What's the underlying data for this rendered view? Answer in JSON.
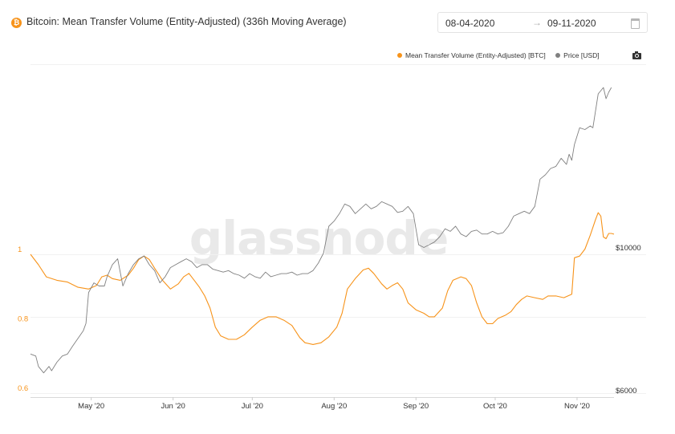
{
  "header": {
    "icon": "bitcoin-icon",
    "title": "Bitcoin: Mean Transfer Volume (Entity-Adjusted) (336h Moving Average)",
    "date_start": "08-04-2020",
    "date_arrow": "→",
    "date_end": "09-11-2020",
    "calendar_icon": "calendar-icon"
  },
  "legend": {
    "items": [
      {
        "label": "Mean Transfer Volume (Entity-Adjusted) [BTC]",
        "color": "#f7931a"
      },
      {
        "label": "Price [USD]",
        "color": "#808080"
      }
    ],
    "camera_icon": "camera-icon"
  },
  "watermark": "glassnode",
  "chart_data": {
    "type": "line",
    "x_ticks": [
      "May '20",
      "Jun '20",
      "Jul '20",
      "Aug '20",
      "Sep '20",
      "Oct '20",
      "Nov '20"
    ],
    "x_tick_days": [
      23,
      54,
      84,
      115,
      146,
      176,
      207
    ],
    "y_left": {
      "ticks": [
        1,
        0.8,
        0.6
      ],
      "range": [
        0.6,
        1.0
      ]
    },
    "y_right": {
      "ticks": [
        10000,
        6000
      ],
      "tick_labels": [
        "$10000",
        "$6000"
      ],
      "scale": "log"
    },
    "series": [
      {
        "name": "Mean Transfer Volume (Entity-Adjusted) [BTC]",
        "axis": "left",
        "color": "#f7931a",
        "points": [
          [
            0,
            1.0
          ],
          [
            3,
            0.97
          ],
          [
            6,
            0.935
          ],
          [
            10,
            0.925
          ],
          [
            14,
            0.92
          ],
          [
            18,
            0.905
          ],
          [
            22,
            0.9
          ],
          [
            25,
            0.91
          ],
          [
            27,
            0.935
          ],
          [
            29,
            0.94
          ],
          [
            31,
            0.93
          ],
          [
            34,
            0.925
          ],
          [
            37,
            0.94
          ],
          [
            39,
            0.96
          ],
          [
            41,
            0.985
          ],
          [
            43,
            0.995
          ],
          [
            45,
            0.985
          ],
          [
            47,
            0.96
          ],
          [
            50,
            0.925
          ],
          [
            53,
            0.9
          ],
          [
            56,
            0.915
          ],
          [
            58,
            0.935
          ],
          [
            60,
            0.945
          ],
          [
            62,
            0.925
          ],
          [
            64,
            0.905
          ],
          [
            66,
            0.88
          ],
          [
            68,
            0.845
          ],
          [
            70,
            0.79
          ],
          [
            72,
            0.765
          ],
          [
            75,
            0.755
          ],
          [
            78,
            0.755
          ],
          [
            81,
            0.768
          ],
          [
            84,
            0.79
          ],
          [
            87,
            0.81
          ],
          [
            90,
            0.82
          ],
          [
            93,
            0.82
          ],
          [
            96,
            0.81
          ],
          [
            99,
            0.795
          ],
          [
            102,
            0.76
          ],
          [
            104,
            0.745
          ],
          [
            107,
            0.74
          ],
          [
            110,
            0.745
          ],
          [
            113,
            0.762
          ],
          [
            116,
            0.79
          ],
          [
            118,
            0.83
          ],
          [
            120,
            0.9
          ],
          [
            123,
            0.93
          ],
          [
            126,
            0.955
          ],
          [
            128,
            0.96
          ],
          [
            130,
            0.945
          ],
          [
            133,
            0.915
          ],
          [
            135,
            0.9
          ],
          [
            137,
            0.91
          ],
          [
            139,
            0.918
          ],
          [
            141,
            0.9
          ],
          [
            143,
            0.86
          ],
          [
            146,
            0.84
          ],
          [
            149,
            0.83
          ],
          [
            151,
            0.82
          ],
          [
            153,
            0.82
          ],
          [
            156,
            0.845
          ],
          [
            158,
            0.895
          ],
          [
            160,
            0.925
          ],
          [
            163,
            0.935
          ],
          [
            165,
            0.93
          ],
          [
            167,
            0.91
          ],
          [
            169,
            0.86
          ],
          [
            171,
            0.82
          ],
          [
            173,
            0.8
          ],
          [
            175,
            0.8
          ],
          [
            177,
            0.815
          ],
          [
            180,
            0.825
          ],
          [
            182,
            0.835
          ],
          [
            184,
            0.855
          ],
          [
            186,
            0.87
          ],
          [
            188,
            0.88
          ],
          [
            191,
            0.875
          ],
          [
            194,
            0.87
          ],
          [
            196,
            0.88
          ],
          [
            199,
            0.88
          ],
          [
            202,
            0.875
          ],
          [
            205,
            0.885
          ],
          [
            206,
            0.99
          ],
          [
            208,
            0.995
          ],
          [
            210,
            1.015
          ],
          [
            212,
            1.055
          ],
          [
            214,
            1.1
          ],
          [
            215,
            1.12
          ],
          [
            216,
            1.11
          ],
          [
            217,
            1.05
          ],
          [
            218,
            1.045
          ],
          [
            219,
            1.06
          ],
          [
            220,
            1.06
          ],
          [
            221,
            1.058
          ]
        ]
      },
      {
        "name": "Price [USD]",
        "axis": "right",
        "color": "#808080",
        "points": [
          [
            0,
            6900
          ],
          [
            2,
            6850
          ],
          [
            3,
            6600
          ],
          [
            5,
            6450
          ],
          [
            7,
            6600
          ],
          [
            8,
            6500
          ],
          [
            10,
            6700
          ],
          [
            12,
            6850
          ],
          [
            14,
            6900
          ],
          [
            16,
            7100
          ],
          [
            18,
            7300
          ],
          [
            20,
            7500
          ],
          [
            21,
            7700
          ],
          [
            22,
            8600
          ],
          [
            24,
            8900
          ],
          [
            26,
            8800
          ],
          [
            28,
            8800
          ],
          [
            29,
            9100
          ],
          [
            31,
            9500
          ],
          [
            33,
            9700
          ],
          [
            35,
            8800
          ],
          [
            37,
            9200
          ],
          [
            39,
            9500
          ],
          [
            41,
            9700
          ],
          [
            43,
            9800
          ],
          [
            45,
            9500
          ],
          [
            47,
            9300
          ],
          [
            49,
            8900
          ],
          [
            51,
            9100
          ],
          [
            53,
            9400
          ],
          [
            55,
            9500
          ],
          [
            57,
            9600
          ],
          [
            59,
            9700
          ],
          [
            61,
            9600
          ],
          [
            63,
            9400
          ],
          [
            65,
            9500
          ],
          [
            67,
            9500
          ],
          [
            69,
            9350
          ],
          [
            71,
            9300
          ],
          [
            73,
            9250
          ],
          [
            75,
            9300
          ],
          [
            77,
            9200
          ],
          [
            79,
            9150
          ],
          [
            81,
            9050
          ],
          [
            83,
            9200
          ],
          [
            85,
            9100
          ],
          [
            87,
            9050
          ],
          [
            89,
            9250
          ],
          [
            91,
            9100
          ],
          [
            93,
            9150
          ],
          [
            95,
            9200
          ],
          [
            97,
            9200
          ],
          [
            99,
            9250
          ],
          [
            101,
            9150
          ],
          [
            103,
            9200
          ],
          [
            105,
            9200
          ],
          [
            107,
            9300
          ],
          [
            109,
            9550
          ],
          [
            111,
            9900
          ],
          [
            113,
            10900
          ],
          [
            115,
            11100
          ],
          [
            117,
            11400
          ],
          [
            119,
            11800
          ],
          [
            121,
            11700
          ],
          [
            123,
            11400
          ],
          [
            125,
            11600
          ],
          [
            127,
            11800
          ],
          [
            129,
            11600
          ],
          [
            131,
            11700
          ],
          [
            133,
            11900
          ],
          [
            135,
            11800
          ],
          [
            137,
            11700
          ],
          [
            139,
            11450
          ],
          [
            141,
            11500
          ],
          [
            143,
            11700
          ],
          [
            145,
            11400
          ],
          [
            147,
            10200
          ],
          [
            149,
            10100
          ],
          [
            151,
            10200
          ],
          [
            153,
            10300
          ],
          [
            155,
            10500
          ],
          [
            157,
            10800
          ],
          [
            159,
            10700
          ],
          [
            161,
            10900
          ],
          [
            163,
            10600
          ],
          [
            165,
            10500
          ],
          [
            167,
            10700
          ],
          [
            169,
            10750
          ],
          [
            171,
            10600
          ],
          [
            173,
            10600
          ],
          [
            175,
            10700
          ],
          [
            177,
            10600
          ],
          [
            179,
            10650
          ],
          [
            181,
            10900
          ],
          [
            183,
            11300
          ],
          [
            185,
            11400
          ],
          [
            187,
            11500
          ],
          [
            189,
            11400
          ],
          [
            191,
            11700
          ],
          [
            193,
            12900
          ],
          [
            195,
            13100
          ],
          [
            197,
            13400
          ],
          [
            199,
            13500
          ],
          [
            201,
            13900
          ],
          [
            203,
            13600
          ],
          [
            204,
            14100
          ],
          [
            205,
            13800
          ],
          [
            206,
            14600
          ],
          [
            208,
            15500
          ],
          [
            210,
            15400
          ],
          [
            212,
            15600
          ],
          [
            213,
            15500
          ],
          [
            215,
            17500
          ],
          [
            216,
            17700
          ],
          [
            217,
            17900
          ],
          [
            218,
            17200
          ],
          [
            219,
            17600
          ],
          [
            220,
            17900
          ]
        ]
      }
    ]
  }
}
